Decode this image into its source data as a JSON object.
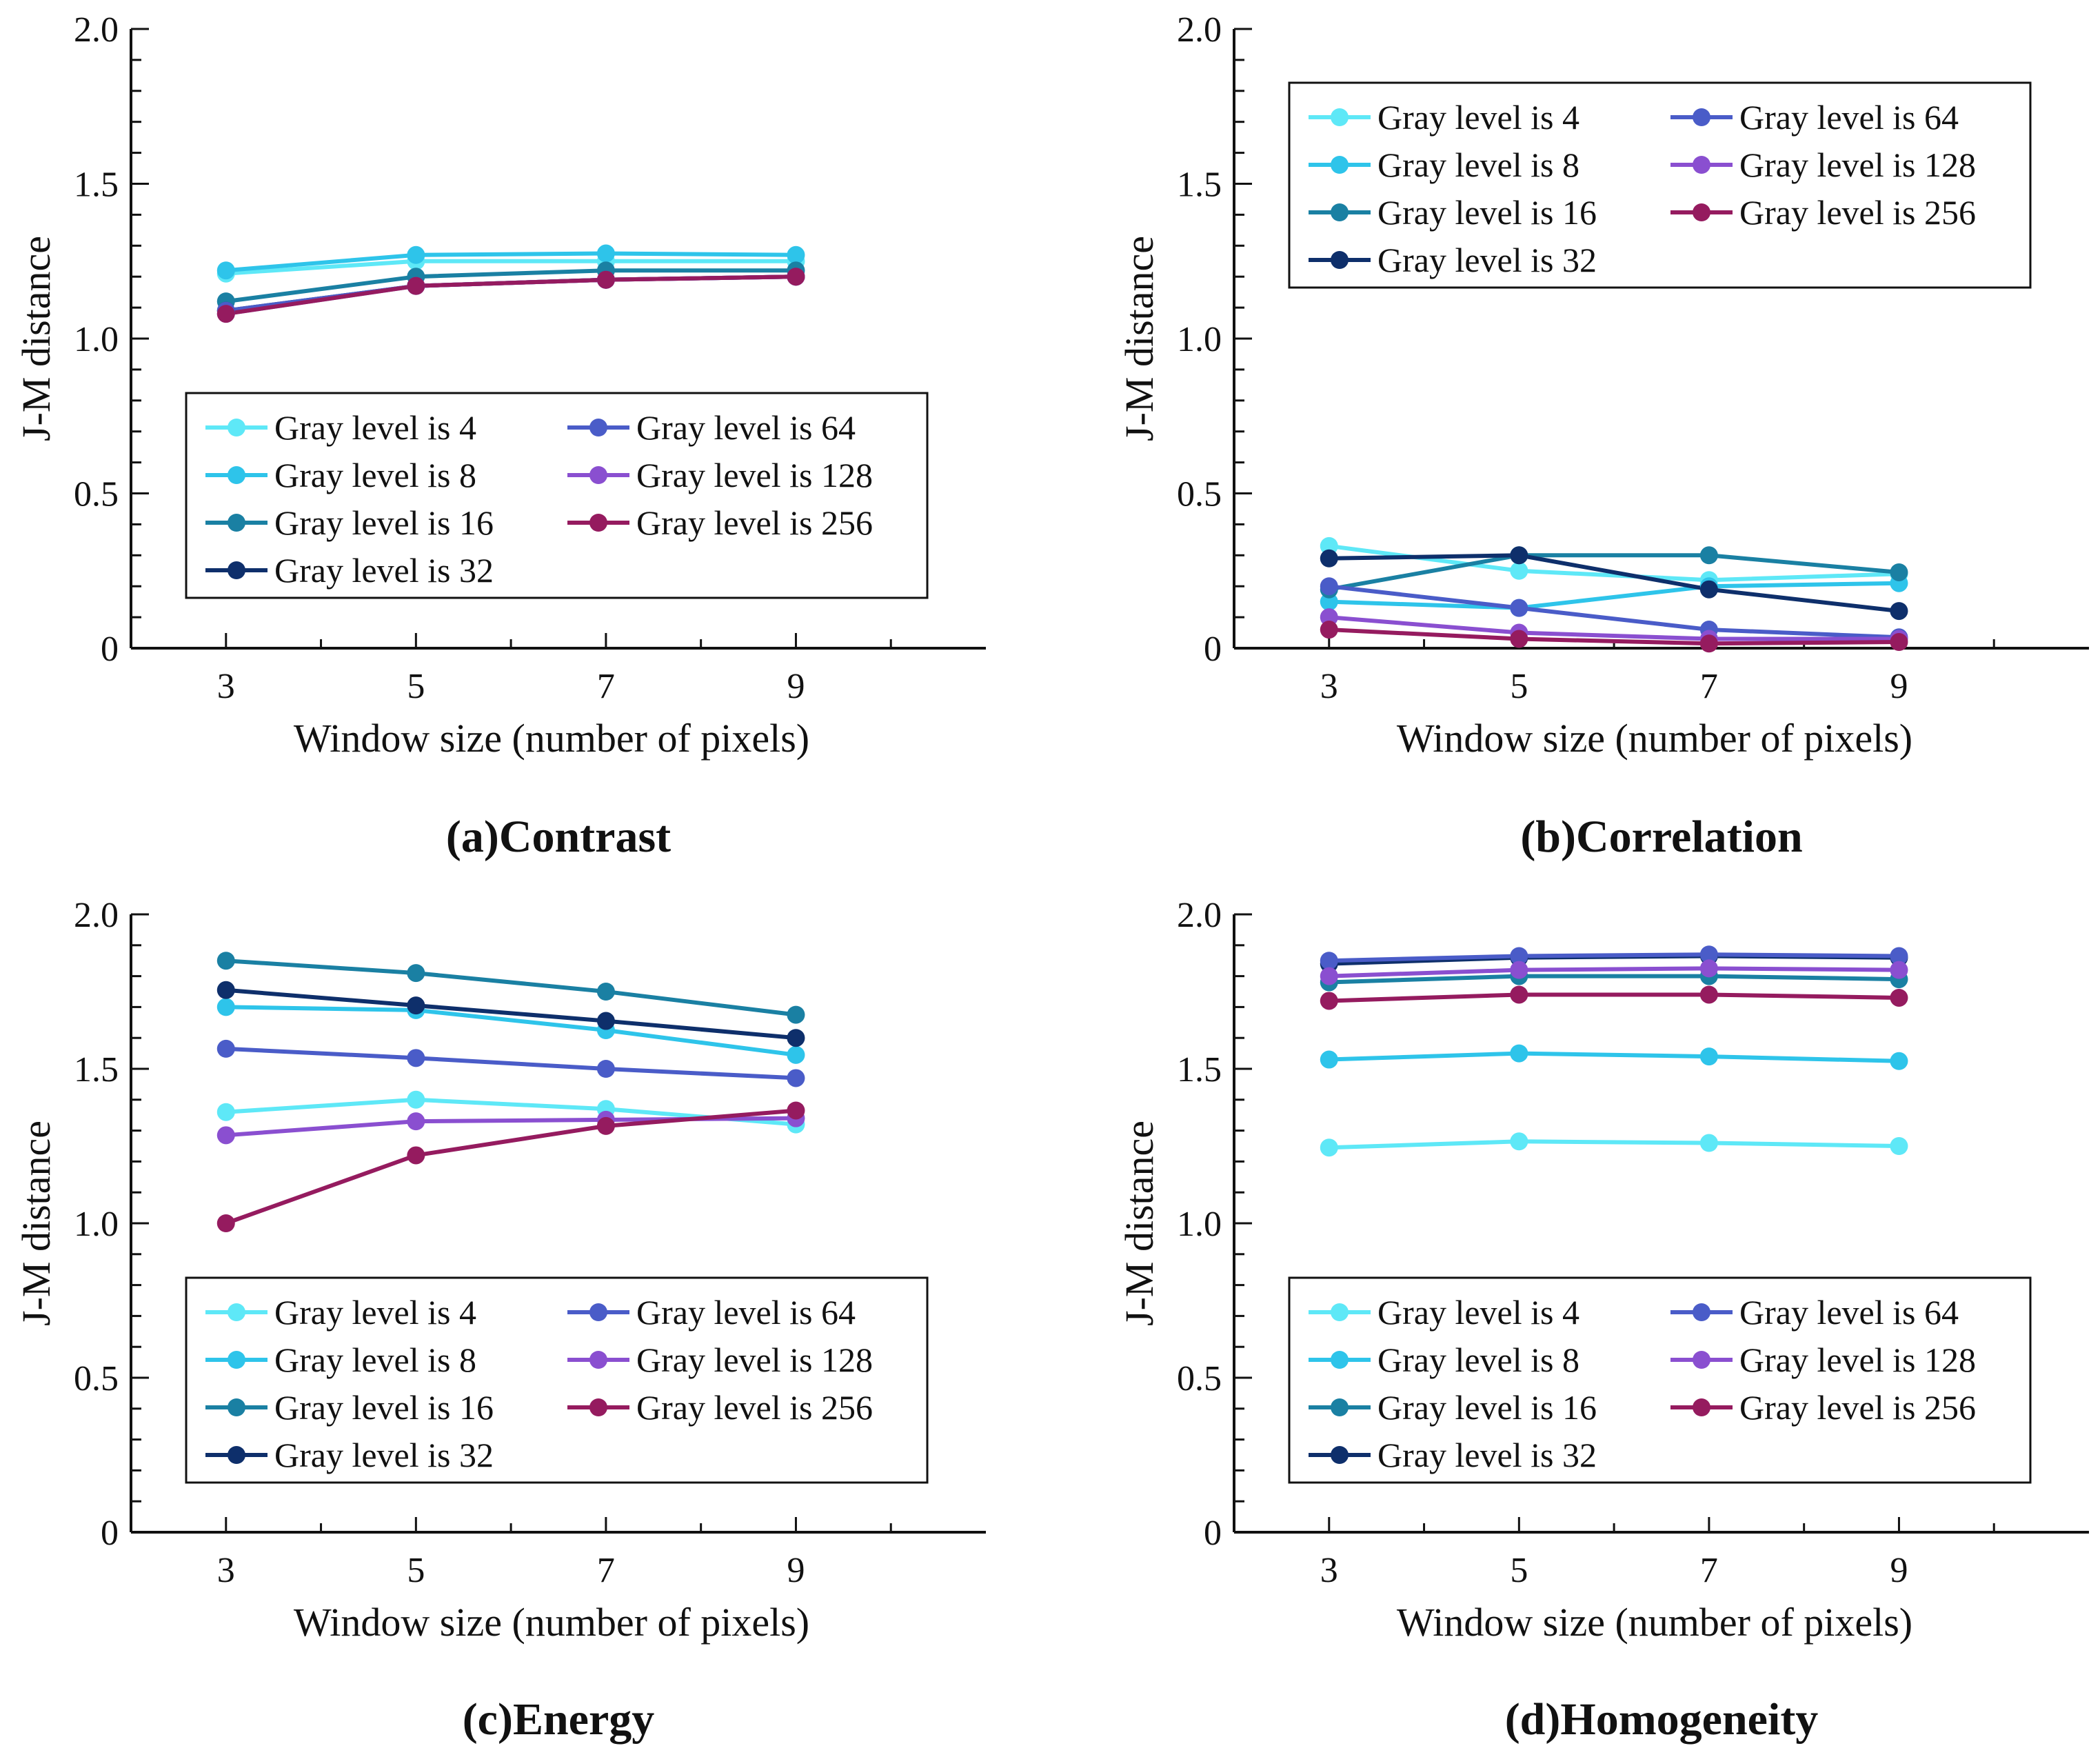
{
  "figure": {
    "captions": [
      "(a)Contrast",
      "(b)Correlation",
      "(c)Energy",
      "(d)Homogeneity"
    ]
  },
  "colors": {
    "gray4": "#5ee8f7",
    "gray8": "#2ec4ea",
    "gray16": "#1a80a3",
    "gray32": "#0e2f6b",
    "gray64": "#4a5cc8",
    "gray128": "#8a4fd0",
    "gray256": "#951b5f"
  },
  "chart_data": [
    {
      "type": "line",
      "title": "(a)Contrast",
      "xlabel": "Window size (number of pixels)",
      "ylabel": "J-M distance",
      "x": [
        3,
        5,
        7,
        9
      ],
      "xlim": [
        2,
        11
      ],
      "ylim": [
        0,
        2.0
      ],
      "yticks": [
        "0",
        "0.5",
        "1.0",
        "1.5",
        "2.0"
      ],
      "xticks": [
        "3",
        "5",
        "7",
        "9"
      ],
      "legend_position": "lower-center",
      "series": [
        {
          "name": "Gray level is 4",
          "color": "#5ee8f7",
          "values": [
            1.21,
            1.25,
            1.25,
            1.25
          ]
        },
        {
          "name": "Gray level is 8",
          "color": "#2ec4ea",
          "values": [
            1.22,
            1.27,
            1.275,
            1.27
          ]
        },
        {
          "name": "Gray level is 16",
          "color": "#1a80a3",
          "values": [
            1.12,
            1.2,
            1.22,
            1.22
          ]
        },
        {
          "name": "Gray level is 32",
          "color": "#0e2f6b",
          "values": [
            1.09,
            1.17,
            1.19,
            1.2
          ]
        },
        {
          "name": "Gray level is 64",
          "color": "#4a5cc8",
          "values": [
            1.09,
            1.17,
            1.19,
            1.2
          ]
        },
        {
          "name": "Gray level is 128",
          "color": "#8a4fd0",
          "values": [
            1.08,
            1.17,
            1.19,
            1.2
          ]
        },
        {
          "name": "Gray level is 256",
          "color": "#951b5f",
          "values": [
            1.08,
            1.17,
            1.19,
            1.2
          ]
        }
      ]
    },
    {
      "type": "line",
      "title": "(b)Correlation",
      "xlabel": "Window size (number of pixels)",
      "ylabel": "J-M distance",
      "x": [
        3,
        5,
        7,
        9
      ],
      "xlim": [
        2,
        11
      ],
      "ylim": [
        0,
        2.0
      ],
      "yticks": [
        "0",
        "0.5",
        "1.0",
        "1.5",
        "2.0"
      ],
      "xticks": [
        "3",
        "5",
        "7",
        "9"
      ],
      "legend_position": "top-left",
      "series": [
        {
          "name": "Gray level is 4",
          "color": "#5ee8f7",
          "values": [
            0.33,
            0.25,
            0.22,
            0.24
          ]
        },
        {
          "name": "Gray level is 8",
          "color": "#2ec4ea",
          "values": [
            0.15,
            0.13,
            0.2,
            0.21
          ]
        },
        {
          "name": "Gray level is 16",
          "color": "#1a80a3",
          "values": [
            0.19,
            0.3,
            0.3,
            0.245
          ]
        },
        {
          "name": "Gray level is 32",
          "color": "#0e2f6b",
          "values": [
            0.29,
            0.3,
            0.19,
            0.12
          ]
        },
        {
          "name": "Gray level is 64",
          "color": "#4a5cc8",
          "values": [
            0.2,
            0.13,
            0.06,
            0.035
          ]
        },
        {
          "name": "Gray level is 128",
          "color": "#8a4fd0",
          "values": [
            0.1,
            0.05,
            0.03,
            0.03
          ]
        },
        {
          "name": "Gray level is 256",
          "color": "#951b5f",
          "values": [
            0.06,
            0.03,
            0.015,
            0.02
          ]
        }
      ]
    },
    {
      "type": "line",
      "title": "(c)Energy",
      "xlabel": "Window size (number of pixels)",
      "ylabel": "J-M distance",
      "x": [
        3,
        5,
        7,
        9
      ],
      "xlim": [
        2,
        11
      ],
      "ylim": [
        0,
        2.0
      ],
      "yticks": [
        "0",
        "0.5",
        "1.0",
        "1.5",
        "2.0"
      ],
      "xticks": [
        "3",
        "5",
        "7",
        "9"
      ],
      "legend_position": "lower-center",
      "series": [
        {
          "name": "Gray level is 4",
          "color": "#5ee8f7",
          "values": [
            1.36,
            1.4,
            1.37,
            1.32
          ]
        },
        {
          "name": "Gray level is 8",
          "color": "#2ec4ea",
          "values": [
            1.7,
            1.69,
            1.625,
            1.545
          ]
        },
        {
          "name": "Gray level is 16",
          "color": "#1a80a3",
          "values": [
            1.85,
            1.81,
            1.75,
            1.675
          ]
        },
        {
          "name": "Gray level is 32",
          "color": "#0e2f6b",
          "values": [
            1.755,
            1.705,
            1.655,
            1.6
          ]
        },
        {
          "name": "Gray level is 64",
          "color": "#4a5cc8",
          "values": [
            1.565,
            1.535,
            1.5,
            1.47
          ]
        },
        {
          "name": "Gray level is 128",
          "color": "#8a4fd0",
          "values": [
            1.285,
            1.33,
            1.335,
            1.34
          ]
        },
        {
          "name": "Gray level is 256",
          "color": "#951b5f",
          "values": [
            1.0,
            1.22,
            1.315,
            1.365
          ]
        }
      ]
    },
    {
      "type": "line",
      "title": "(d)Homogeneity",
      "xlabel": "Window size (number of pixels)",
      "ylabel": "J-M distance",
      "x": [
        3,
        5,
        7,
        9
      ],
      "xlim": [
        2,
        11
      ],
      "ylim": [
        0,
        2.0
      ],
      "yticks": [
        "0",
        "0.5",
        "1.0",
        "1.5",
        "2.0"
      ],
      "xticks": [
        "3",
        "5",
        "7",
        "9"
      ],
      "legend_position": "lower-center",
      "series": [
        {
          "name": "Gray level is 4",
          "color": "#5ee8f7",
          "values": [
            1.245,
            1.265,
            1.26,
            1.25
          ]
        },
        {
          "name": "Gray level is 8",
          "color": "#2ec4ea",
          "values": [
            1.53,
            1.55,
            1.54,
            1.525
          ]
        },
        {
          "name": "Gray level is 16",
          "color": "#1a80a3",
          "values": [
            1.78,
            1.8,
            1.8,
            1.79
          ]
        },
        {
          "name": "Gray level is 32",
          "color": "#0e2f6b",
          "values": [
            1.84,
            1.86,
            1.865,
            1.86
          ]
        },
        {
          "name": "Gray level is 64",
          "color": "#4a5cc8",
          "values": [
            1.85,
            1.865,
            1.87,
            1.865
          ]
        },
        {
          "name": "Gray level is 128",
          "color": "#8a4fd0",
          "values": [
            1.8,
            1.82,
            1.825,
            1.82
          ]
        },
        {
          "name": "Gray level is 256",
          "color": "#951b5f",
          "values": [
            1.72,
            1.74,
            1.74,
            1.73
          ]
        }
      ]
    }
  ]
}
